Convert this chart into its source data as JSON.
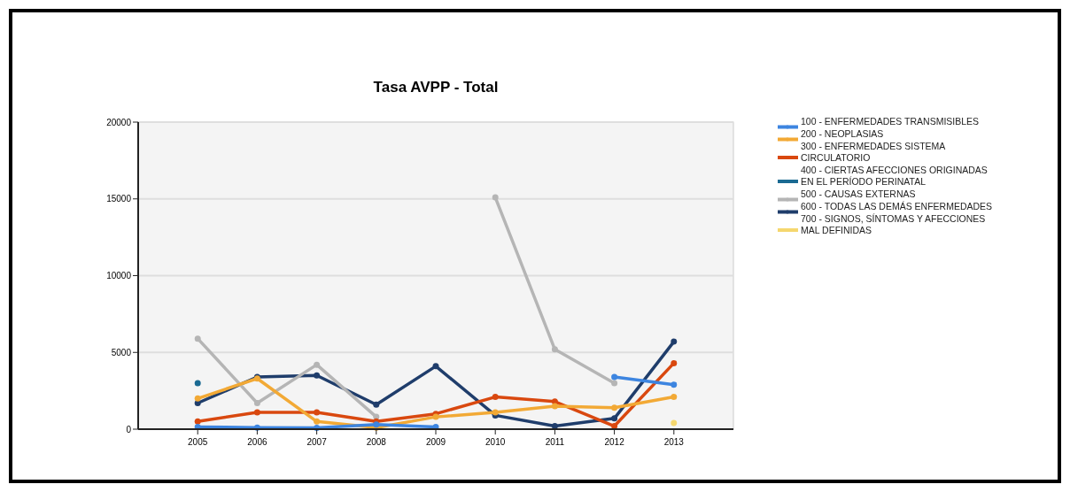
{
  "chart_data": {
    "type": "line",
    "title": "Tasa AVPP - Total",
    "categories": [
      "2005",
      "2006",
      "2007",
      "2008",
      "2009",
      "2010",
      "2011",
      "2012",
      "2013"
    ],
    "ylim": [
      0,
      20000
    ],
    "yticks": [
      0,
      5000,
      10000,
      15000,
      20000
    ],
    "grid": "y",
    "legend": "top right",
    "marker": "circle",
    "line_style": "solid",
    "series": [
      {
        "name": "100 - ENFERMEDADES TRANSMISIBLES",
        "color": "#3d85e0",
        "values": [
          150,
          100,
          80,
          300,
          150,
          null,
          null,
          3400,
          2900
        ]
      },
      {
        "name": "200 - NEOPLASIAS",
        "color": "#f2a935",
        "values": [
          2000,
          3300,
          500,
          100,
          800,
          1100,
          1500,
          1400,
          2100
        ]
      },
      {
        "name": "300 - ENFERMEDADES SISTEMA CIRCULATORIO",
        "color": "#d9480f",
        "values": [
          500,
          1100,
          1100,
          500,
          1000,
          2100,
          1800,
          200,
          4300
        ]
      },
      {
        "name": "400 - CIERTAS AFECCIONES ORIGINADAS EN EL PERÍODO PERINATAL",
        "color": "#1a6a92",
        "values": [
          3000,
          null,
          null,
          null,
          null,
          null,
          null,
          null,
          null
        ]
      },
      {
        "name": "500 - CAUSAS EXTERNAS",
        "color": "#b5b5b5",
        "values": [
          5900,
          1700,
          4200,
          800,
          null,
          15100,
          5200,
          3000,
          null
        ]
      },
      {
        "name": "600 - TODAS LAS DEMÁS ENFERMEDADES",
        "color": "#1f3d6b",
        "values": [
          1700,
          3400,
          3500,
          1600,
          4100,
          900,
          200,
          700,
          5700
        ]
      },
      {
        "name": "700 - SIGNOS, SÍNTOMAS Y AFECCIONES MAL DEFINIDAS",
        "color": "#f5d76e",
        "values": [
          null,
          null,
          null,
          null,
          null,
          null,
          null,
          null,
          400
        ]
      }
    ]
  }
}
